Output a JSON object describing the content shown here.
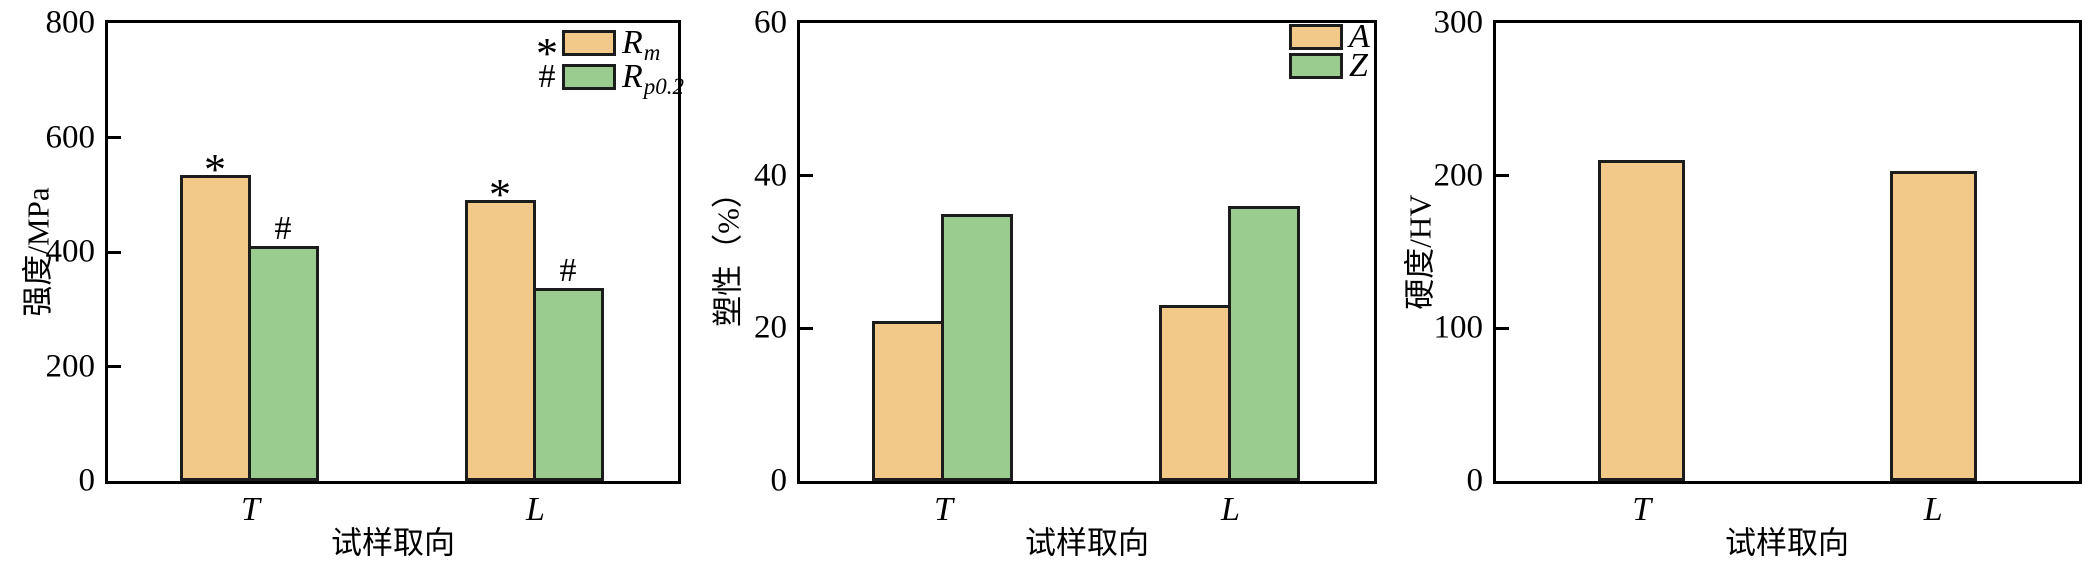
{
  "figure": {
    "background": "#ffffff",
    "description_colors": {
      "bar_orange": "#F3C98A",
      "bar_green": "#9ACC90",
      "bar_border": "#1c1c1c",
      "axis": "#000000",
      "text": "#000000"
    }
  },
  "chart_data": [
    {
      "type": "bar",
      "title": "",
      "xlabel": "试样取向",
      "ylabel": "强度/MPa",
      "ylim": [
        0,
        800
      ],
      "yticks": [
        0,
        200,
        400,
        600,
        800
      ],
      "categories": [
        "T",
        "L"
      ],
      "grid": "off",
      "legend_position": "top-right",
      "series": [
        {
          "name": "Rm",
          "label_main": "R",
          "label_sub": "m",
          "marker": "*",
          "color": "#F3C98A",
          "values": [
            535,
            490
          ]
        },
        {
          "name": "Rp02",
          "label_main": "R",
          "label_sub": "p0.2",
          "marker": "#",
          "color": "#9ACC90",
          "values": [
            410,
            338
          ]
        }
      ]
    },
    {
      "type": "bar",
      "title": "",
      "xlabel": "试样取向",
      "ylabel": "塑性（%）",
      "ylim": [
        0,
        60
      ],
      "yticks": [
        0,
        20,
        40,
        60
      ],
      "categories": [
        "T",
        "L"
      ],
      "grid": "off",
      "legend_position": "top-right",
      "series": [
        {
          "name": "A",
          "label_main": "A",
          "label_sub": "",
          "marker": "",
          "color": "#F3C98A",
          "values": [
            21,
            23
          ]
        },
        {
          "name": "Z",
          "label_main": "Z",
          "label_sub": "",
          "marker": "",
          "color": "#9ACC90",
          "values": [
            35,
            36
          ]
        }
      ]
    },
    {
      "type": "bar",
      "title": "",
      "xlabel": "试样取向",
      "ylabel": "硬度/HV",
      "ylim": [
        0,
        300
      ],
      "yticks": [
        0,
        100,
        200,
        300
      ],
      "categories": [
        "T",
        "L"
      ],
      "grid": "off",
      "legend_position": "none",
      "series": [
        {
          "name": "hardness",
          "label_main": "",
          "label_sub": "",
          "marker": "",
          "color": "#F3C98A",
          "values": [
            210,
            203
          ]
        }
      ]
    }
  ]
}
